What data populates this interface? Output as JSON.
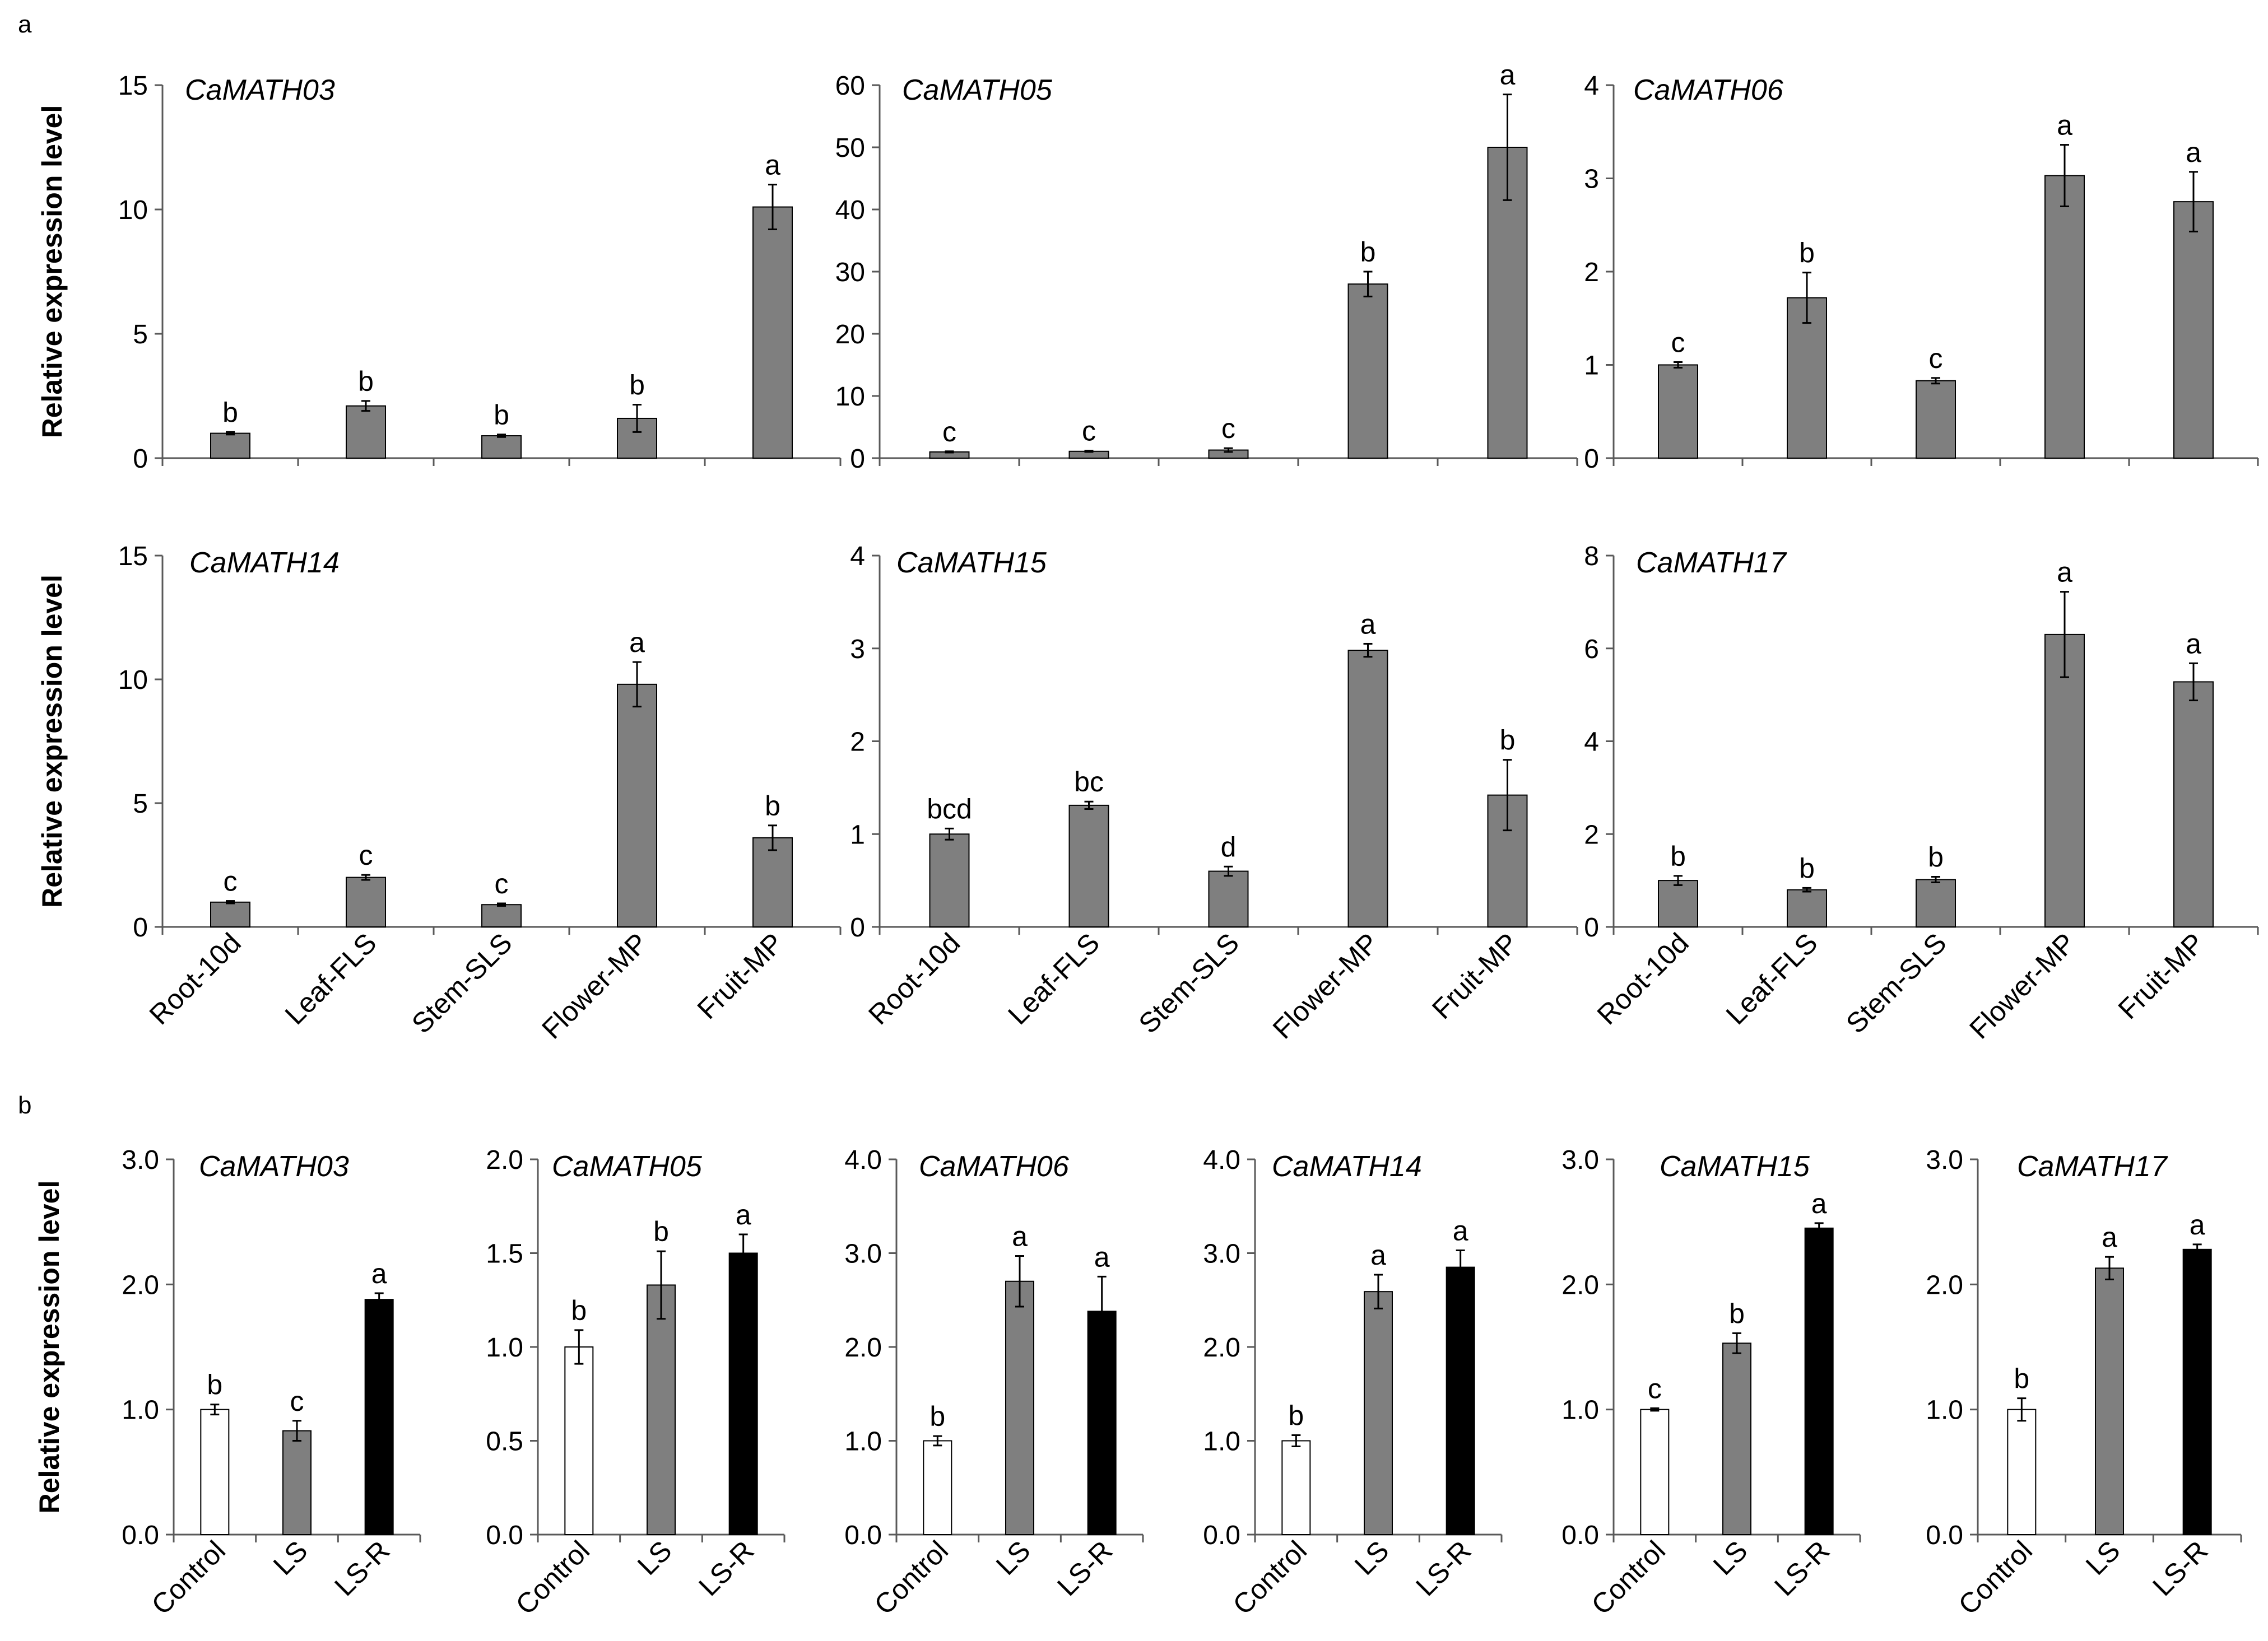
{
  "panel_labels": {
    "a": "a",
    "b": "b"
  },
  "ylabel": "Relative expression level",
  "colors": {
    "gray_bar": "#7f7f7f",
    "black_bar": "#000000",
    "white_bar": "#ffffff",
    "axis": "#595959"
  },
  "chart_data": [
    {
      "type": "bar",
      "panel": "a",
      "title": "CaMATH03",
      "categories": [
        "Root-10d",
        "Leaf-FLS",
        "Stem-SLS",
        "Flower-MP",
        "Fruit-MP"
      ],
      "values": [
        1.0,
        2.1,
        0.9,
        1.6,
        10.1
      ],
      "errors": [
        0.05,
        0.2,
        0.05,
        0.55,
        0.9
      ],
      "letters": [
        "b",
        "b",
        "b",
        "b",
        "a"
      ],
      "ylim": [
        0,
        15
      ],
      "yticks": [
        "0",
        "5",
        "10",
        "15"
      ],
      "ylabel": "Relative expression level",
      "xlabel": ""
    },
    {
      "type": "bar",
      "panel": "a",
      "title": "CaMATH05",
      "categories": [
        "Root-10d",
        "Leaf-FLS",
        "Stem-SLS",
        "Flower-MP",
        "Fruit-MP"
      ],
      "values": [
        1.0,
        1.1,
        1.3,
        28.0,
        50.0
      ],
      "errors": [
        0.1,
        0.1,
        0.3,
        2.0,
        8.5
      ],
      "letters": [
        "c",
        "c",
        "c",
        "b",
        "a"
      ],
      "ylim": [
        0,
        60
      ],
      "yticks": [
        "0",
        "10",
        "20",
        "30",
        "40",
        "50",
        "60"
      ],
      "ylabel": "",
      "xlabel": ""
    },
    {
      "type": "bar",
      "panel": "a",
      "title": "CaMATH06",
      "categories": [
        "Root-10d",
        "Leaf-FLS",
        "Stem-SLS",
        "Flower-MP",
        "Fruit-MP"
      ],
      "values": [
        1.0,
        1.72,
        0.83,
        3.03,
        2.75
      ],
      "errors": [
        0.03,
        0.27,
        0.03,
        0.33,
        0.32
      ],
      "letters": [
        "c",
        "b",
        "c",
        "a",
        "a"
      ],
      "ylim": [
        0,
        4
      ],
      "yticks": [
        "0",
        "1",
        "2",
        "3",
        "4"
      ],
      "ylabel": "",
      "xlabel": ""
    },
    {
      "type": "bar",
      "panel": "a",
      "title": "CaMATH14",
      "categories": [
        "Root-10d",
        "Leaf-FLS",
        "Stem-SLS",
        "Flower-MP",
        "Fruit-MP"
      ],
      "values": [
        1.0,
        2.0,
        0.9,
        9.8,
        3.6
      ],
      "errors": [
        0.05,
        0.1,
        0.05,
        0.9,
        0.5
      ],
      "letters": [
        "c",
        "c",
        "c",
        "a",
        "b"
      ],
      "ylim": [
        0,
        15
      ],
      "yticks": [
        "0",
        "5",
        "10",
        "15"
      ],
      "ylabel": "Relative expression level",
      "xlabel": ""
    },
    {
      "type": "bar",
      "panel": "a",
      "title": "CaMATH15",
      "categories": [
        "Root-10d",
        "Leaf-FLS",
        "Stem-SLS",
        "Flower-MP",
        "Fruit-MP"
      ],
      "values": [
        1.0,
        1.31,
        0.6,
        2.98,
        1.42
      ],
      "errors": [
        0.06,
        0.04,
        0.05,
        0.07,
        0.38
      ],
      "letters": [
        "bcd",
        "bc",
        "d",
        "a",
        "b"
      ],
      "ylim": [
        0,
        4
      ],
      "yticks": [
        "0",
        "1",
        "2",
        "3",
        "4"
      ],
      "ylabel": "",
      "xlabel": ""
    },
    {
      "type": "bar",
      "panel": "a",
      "title": "CaMATH17",
      "categories": [
        "Root-10d",
        "Leaf-FLS",
        "Stem-SLS",
        "Flower-MP",
        "Fruit-MP"
      ],
      "values": [
        1.0,
        0.8,
        1.02,
        6.3,
        5.28
      ],
      "errors": [
        0.1,
        0.04,
        0.06,
        0.92,
        0.4
      ],
      "letters": [
        "b",
        "b",
        "b",
        "a",
        "a"
      ],
      "ylim": [
        0,
        8
      ],
      "yticks": [
        "0",
        "2",
        "4",
        "6",
        "8"
      ],
      "ylabel": "",
      "xlabel": ""
    },
    {
      "type": "bar",
      "panel": "b",
      "title": "CaMATH03",
      "categories": [
        "Control",
        "LS",
        "LS-R"
      ],
      "values": [
        1.0,
        0.83,
        1.88
      ],
      "errors": [
        0.04,
        0.08,
        0.05
      ],
      "letters": [
        "b",
        "c",
        "a"
      ],
      "ylim": [
        0,
        3
      ],
      "yticks": [
        "0.0",
        "1.0",
        "2.0",
        "3.0"
      ],
      "ylabel": "Relative expression level",
      "xlabel": ""
    },
    {
      "type": "bar",
      "panel": "b",
      "title": "CaMATH05",
      "categories": [
        "Control",
        "LS",
        "LS-R"
      ],
      "values": [
        1.0,
        1.33,
        1.5
      ],
      "errors": [
        0.09,
        0.18,
        0.1
      ],
      "letters": [
        "b",
        "b",
        "a"
      ],
      "ylim": [
        0,
        2
      ],
      "yticks": [
        "0.0",
        "0.5",
        "1.0",
        "1.5",
        "2.0"
      ],
      "ylabel": "",
      "xlabel": ""
    },
    {
      "type": "bar",
      "panel": "b",
      "title": "CaMATH06",
      "categories": [
        "Control",
        "LS",
        "LS-R"
      ],
      "values": [
        1.0,
        2.7,
        2.38
      ],
      "errors": [
        0.05,
        0.27,
        0.37
      ],
      "letters": [
        "b",
        "a",
        "a"
      ],
      "ylim": [
        0,
        4
      ],
      "yticks": [
        "0.0",
        "1.0",
        "2.0",
        "3.0",
        "4.0"
      ],
      "ylabel": "",
      "xlabel": ""
    },
    {
      "type": "bar",
      "panel": "b",
      "title": "CaMATH14",
      "categories": [
        "Control",
        "LS",
        "LS-R"
      ],
      "values": [
        1.0,
        2.59,
        2.85
      ],
      "errors": [
        0.06,
        0.18,
        0.18
      ],
      "letters": [
        "b",
        "a",
        "a"
      ],
      "ylim": [
        0,
        4
      ],
      "yticks": [
        "0.0",
        "1.0",
        "2.0",
        "3.0",
        "4.0"
      ],
      "ylabel": "",
      "xlabel": ""
    },
    {
      "type": "bar",
      "panel": "b",
      "title": "CaMATH15",
      "categories": [
        "Control",
        "LS",
        "LS-R"
      ],
      "values": [
        1.0,
        1.53,
        2.45
      ],
      "errors": [
        0.01,
        0.08,
        0.04
      ],
      "letters": [
        "c",
        "b",
        "a"
      ],
      "ylim": [
        0,
        3
      ],
      "yticks": [
        "0.0",
        "1.0",
        "2.0",
        "3.0"
      ],
      "ylabel": "",
      "xlabel": ""
    },
    {
      "type": "bar",
      "panel": "b",
      "title": "CaMATH17",
      "categories": [
        "Control",
        "LS",
        "LS-R"
      ],
      "values": [
        1.0,
        2.13,
        2.28
      ],
      "errors": [
        0.09,
        0.09,
        0.04
      ],
      "letters": [
        "b",
        "a",
        "a"
      ],
      "ylim": [
        0,
        3
      ],
      "yticks": [
        "0.0",
        "1.0",
        "2.0",
        "3.0"
      ],
      "ylabel": "",
      "xlabel": ""
    }
  ]
}
